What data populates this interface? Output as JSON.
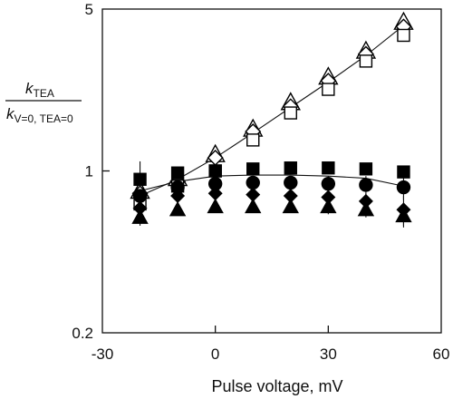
{
  "chart_data": {
    "type": "scatter",
    "title": "",
    "xlabel": "Pulse voltage, mV",
    "ylabel": {
      "numerator_main": "k",
      "numerator_sub": "TEA",
      "denominator_main": "k",
      "denominator_sub": "V=0, TEA=0"
    },
    "xlim": [
      -30,
      60
    ],
    "ylim": [
      0.2,
      5
    ],
    "yscale": "log",
    "x_ticks": [
      -30,
      0,
      30,
      60
    ],
    "x_tick_labels": [
      "-30",
      "0",
      "30",
      "60"
    ],
    "y_ticks": [
      0.2,
      1,
      5
    ],
    "y_tick_labels": [
      "0.2",
      "1",
      "5"
    ],
    "grid": false,
    "legend": "none",
    "series": [
      {
        "marker": "triangle-open",
        "x": [
          -20,
          -10,
          0,
          10,
          20,
          30,
          40,
          50
        ],
        "y": [
          0.82,
          0.93,
          1.18,
          1.52,
          1.98,
          2.55,
          3.3,
          4.4
        ],
        "err": [
          0.1,
          0.05,
          0.04,
          0.05,
          0.1,
          0.14,
          0.2,
          0.25
        ]
      },
      {
        "marker": "diamond-open",
        "x": [
          -20,
          -10,
          0,
          10,
          20,
          30,
          40,
          50
        ],
        "y": [
          0.8,
          0.9,
          1.14,
          1.48,
          1.9,
          2.45,
          3.2,
          4.2
        ],
        "err": [
          0,
          0,
          0,
          0,
          0,
          0,
          0,
          0
        ]
      },
      {
        "marker": "square-open",
        "x": [
          -20,
          -10,
          0,
          10,
          20,
          30,
          40,
          50
        ],
        "y": [
          0.72,
          0.86,
          1.0,
          1.36,
          1.78,
          2.25,
          2.98,
          3.85
        ],
        "err": [
          0,
          0,
          0,
          0,
          0,
          0,
          0,
          0
        ]
      },
      {
        "marker": "square-filled",
        "x": [
          -20,
          -10,
          0,
          10,
          20,
          30,
          40,
          50
        ],
        "y": [
          0.92,
          0.98,
          1.0,
          1.02,
          1.03,
          1.03,
          1.02,
          0.99
        ],
        "err": [
          0.18,
          0,
          0,
          0,
          0,
          0,
          0,
          0
        ]
      },
      {
        "marker": "circle-filled",
        "x": [
          -20,
          -10,
          0,
          10,
          20,
          30,
          40,
          50
        ],
        "y": [
          0.78,
          0.85,
          0.88,
          0.89,
          0.89,
          0.88,
          0.87,
          0.85
        ],
        "err": [
          0.06,
          0.04,
          0.04,
          0.05,
          0.05,
          0.07,
          0.08,
          0.1
        ]
      },
      {
        "marker": "diamond-filled",
        "x": [
          -20,
          -10,
          0,
          10,
          20,
          30,
          40,
          50
        ],
        "y": [
          0.69,
          0.78,
          0.8,
          0.79,
          0.78,
          0.77,
          0.74,
          0.68
        ],
        "err": [
          0.06,
          0.04,
          0.05,
          0.05,
          0.05,
          0.06,
          0.06,
          0.1
        ]
      },
      {
        "marker": "triangle-filled",
        "x": [
          -20,
          -10,
          0,
          10,
          20,
          30,
          40,
          50
        ],
        "y": [
          0.63,
          0.68,
          0.7,
          0.7,
          0.7,
          0.7,
          0.68,
          0.64
        ],
        "err": [
          0.05,
          0.02,
          0.03,
          0.04,
          0.04,
          0.05,
          0.05,
          0.07
        ]
      }
    ],
    "fit_lines": [
      {
        "x": [
          -20,
          -10,
          0,
          10,
          20,
          30,
          40,
          50
        ],
        "y": [
          0.78,
          0.92,
          1.14,
          1.46,
          1.88,
          2.42,
          3.15,
          4.25
        ]
      },
      {
        "x": [
          -20,
          -10,
          0,
          10,
          20,
          30,
          40,
          50
        ],
        "y": [
          0.82,
          0.9,
          0.95,
          0.96,
          0.96,
          0.95,
          0.93,
          0.86
        ]
      }
    ]
  }
}
